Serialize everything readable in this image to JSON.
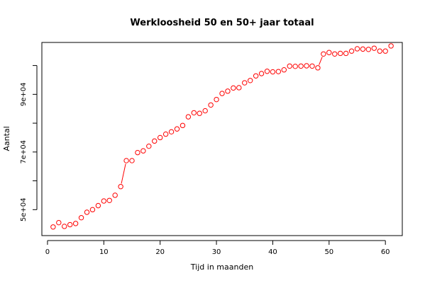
{
  "chart_data": {
    "type": "line",
    "title": "Werkloosheid 50 en 50+ jaar totaal",
    "xlabel": "Tijd in maanden",
    "ylabel": "Aantal",
    "xlim": [
      -1,
      63
    ],
    "ylim": [
      41000,
      108000
    ],
    "x_ticks": [
      0,
      10,
      20,
      30,
      40,
      50,
      60
    ],
    "y_ticks": [
      50000,
      60000,
      70000,
      80000,
      90000,
      100000
    ],
    "y_tick_labels": [
      "5e+04",
      "",
      "7e+04",
      "",
      "9e+04",
      ""
    ],
    "series": [
      {
        "color": "#ff0000",
        "marker": "open-circle",
        "lines_between": [
          [
            13,
            14
          ],
          [
            48,
            49
          ]
        ],
        "x": [
          1,
          2,
          3,
          4,
          5,
          6,
          7,
          8,
          9,
          10,
          11,
          12,
          13,
          14,
          15,
          16,
          17,
          18,
          19,
          20,
          21,
          22,
          23,
          24,
          25,
          26,
          27,
          28,
          29,
          30,
          31,
          32,
          33,
          34,
          35,
          36,
          37,
          38,
          39,
          40,
          41,
          42,
          43,
          44,
          45,
          46,
          47,
          48,
          49,
          50,
          51,
          52,
          53,
          54,
          55,
          56,
          57,
          58,
          59,
          60,
          61
        ],
        "y": [
          44000,
          45500,
          44200,
          44800,
          45200,
          47200,
          49100,
          50000,
          51400,
          53000,
          53200,
          55000,
          58000,
          67000,
          67000,
          69800,
          70400,
          72000,
          73800,
          75000,
          76200,
          77000,
          78000,
          79200,
          82200,
          83600,
          83400,
          84300,
          86300,
          88200,
          90300,
          91100,
          92200,
          92300,
          94000,
          94800,
          96400,
          97200,
          98000,
          97800,
          97900,
          98500,
          99800,
          99700,
          99800,
          99900,
          99800,
          99200,
          104000,
          104500,
          104000,
          104200,
          104200,
          105000,
          105800,
          105700,
          105600,
          106000,
          105000,
          105000,
          106800
        ]
      }
    ]
  }
}
